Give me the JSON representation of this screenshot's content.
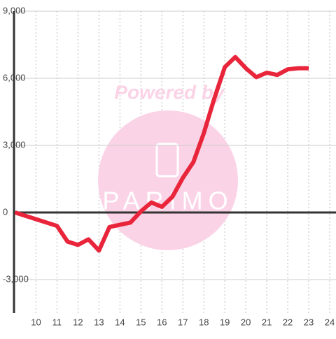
{
  "chart_data": {
    "type": "line",
    "watermark": "Powered by",
    "watermark_logo": "PARIMO",
    "x": [
      9,
      11,
      11.5,
      12,
      12.5,
      13,
      13.5,
      14,
      14.5,
      15,
      15.5,
      16,
      16.5,
      17,
      17.5,
      18,
      18.5,
      19,
      19.5,
      20,
      20.5,
      21,
      21.5,
      22,
      22.5,
      23
    ],
    "values": [
      0,
      -600,
      -1300,
      -1450,
      -1200,
      -1700,
      -650,
      -550,
      -450,
      50,
      450,
      250,
      700,
      1550,
      2250,
      3550,
      5100,
      6500,
      6950,
      6450,
      6050,
      6250,
      6150,
      6400,
      6450,
      6450
    ],
    "color": "#e8253b",
    "xlim": [
      8.95,
      24.3
    ],
    "xticks": [
      10,
      11,
      12,
      13,
      14,
      15,
      16,
      17,
      18,
      19,
      20,
      21,
      22,
      23,
      24
    ],
    "ylim": [
      -4500,
      9000
    ],
    "yticks": [
      {
        "value": -3000,
        "label": "-3,000"
      },
      0,
      {
        "value": 3000,
        "label": "3,000"
      },
      {
        "value": 6000,
        "label": "6,000"
      },
      {
        "value": 9000,
        "label": "9,000"
      }
    ],
    "grid": true
  }
}
